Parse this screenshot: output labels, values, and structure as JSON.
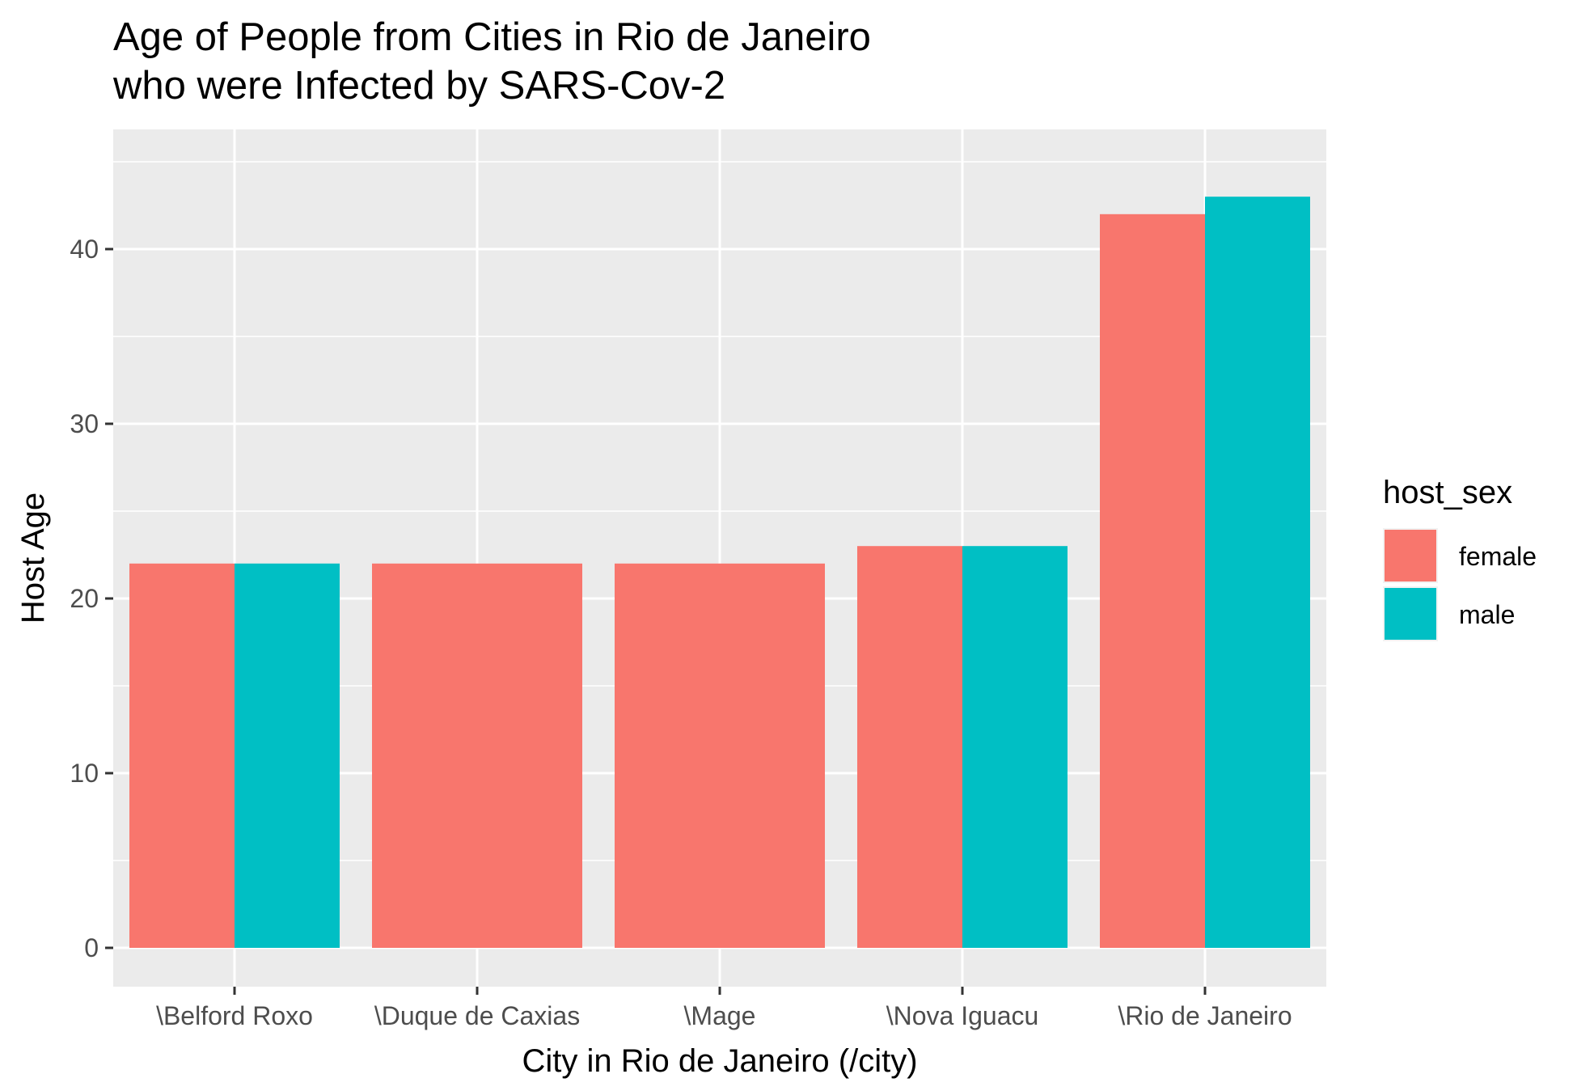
{
  "chart_data": {
    "type": "bar",
    "title": [
      "Age of People from Cities in Rio de Janeiro",
      "who were Infected by SARS-Cov-2"
    ],
    "xlabel": "City in Rio de Janeiro (/city)",
    "ylabel": "Host Age",
    "categories": [
      "\\Belford Roxo",
      "\\Duque de Caxias",
      "\\Mage",
      "\\Nova Iguacu",
      "\\Rio de Janeiro"
    ],
    "series": [
      {
        "name": "female",
        "color": "#F8766D",
        "values": [
          22,
          22,
          22,
          23,
          42
        ]
      },
      {
        "name": "male",
        "color": "#00BFC4",
        "values": [
          22,
          null,
          null,
          23,
          43
        ]
      }
    ],
    "ylim": [
      0,
      45
    ],
    "yticks": [
      0,
      10,
      20,
      30,
      40
    ],
    "grid": true,
    "legend": {
      "title": "host_sex",
      "position": "right"
    },
    "panel_color": "#EBEBEB"
  }
}
